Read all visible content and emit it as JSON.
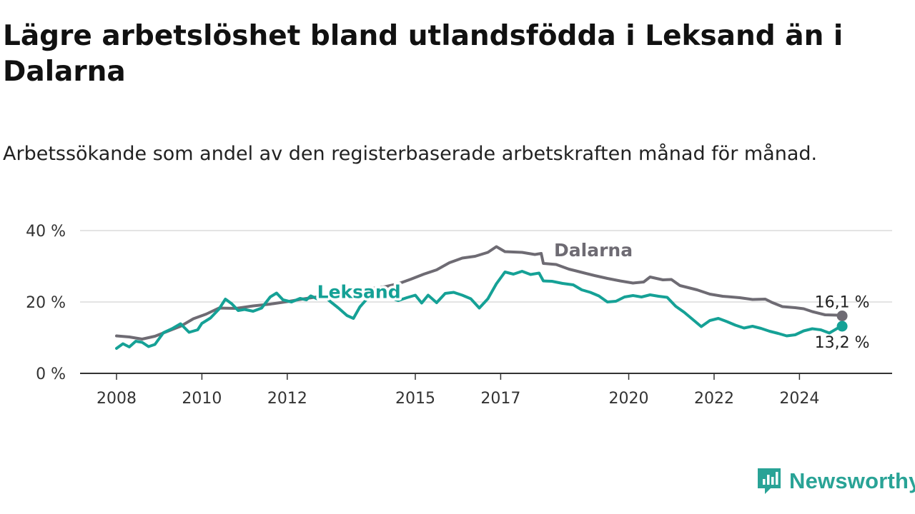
{
  "title": "Lägre arbetslöshet bland utlandsfödda i Leksand än i Dalarna",
  "subtitle": "Arbetssökande som andel av den registerbaserade arbetskraften månad för månad.",
  "brand": {
    "name": "Newsworthy",
    "color": "#29a396"
  },
  "chart_data": {
    "type": "line",
    "title": "Lägre arbetslöshet bland utlandsfödda i Leksand än i Dalarna",
    "subtitle": "Arbetssökande som andel av den registerbaserade arbetskraften månad för månad.",
    "xlabel": "",
    "ylabel": "",
    "xlim": [
      2008.0,
      2025.3
    ],
    "ylim": [
      0,
      40
    ],
    "y_ticks": [
      {
        "value": 0,
        "label": "0 %"
      },
      {
        "value": 20,
        "label": "20 %"
      },
      {
        "value": 40,
        "label": "40 %"
      }
    ],
    "x_ticks": [
      {
        "value": 2008.0,
        "label": "2008"
      },
      {
        "value": 2010.0,
        "label": "2010"
      },
      {
        "value": 2012.0,
        "label": "2012"
      },
      {
        "value": 2015.0,
        "label": "2015"
      },
      {
        "value": 2017.0,
        "label": "2017"
      },
      {
        "value": 2020.0,
        "label": "2020"
      },
      {
        "value": 2022.0,
        "label": "2022"
      },
      {
        "value": 2024.0,
        "label": "2024"
      }
    ],
    "grid": true,
    "legend": "direct labels on lines",
    "series": [
      {
        "name": "Dalarna",
        "color": "#6e6b73",
        "end_label": "16,1 %",
        "points": [
          [
            2008.0,
            10.5
          ],
          [
            2008.3,
            10.2
          ],
          [
            2008.6,
            9.6
          ],
          [
            2008.9,
            10.4
          ],
          [
            2009.2,
            11.8
          ],
          [
            2009.5,
            13.2
          ],
          [
            2009.8,
            15.3
          ],
          [
            2010.1,
            16.6
          ],
          [
            2010.4,
            18.3
          ],
          [
            2010.8,
            18.2
          ],
          [
            2011.2,
            18.9
          ],
          [
            2011.6,
            19.4
          ],
          [
            2012.0,
            20.1
          ],
          [
            2012.4,
            20.9
          ],
          [
            2012.8,
            21.6
          ],
          [
            2013.2,
            22.4
          ],
          [
            2013.6,
            23.0
          ],
          [
            2014.0,
            23.8
          ],
          [
            2014.3,
            24.3
          ],
          [
            2014.6,
            25.1
          ],
          [
            2014.9,
            26.4
          ],
          [
            2015.2,
            27.8
          ],
          [
            2015.5,
            29.0
          ],
          [
            2015.8,
            31.0
          ],
          [
            2016.1,
            32.3
          ],
          [
            2016.4,
            32.8
          ],
          [
            2016.7,
            33.9
          ],
          [
            2016.9,
            35.5
          ],
          [
            2017.1,
            34.1
          ],
          [
            2017.5,
            33.9
          ],
          [
            2017.8,
            33.3
          ],
          [
            2017.95,
            33.6
          ],
          [
            2018.0,
            30.8
          ],
          [
            2018.3,
            30.5
          ],
          [
            2018.6,
            29.2
          ],
          [
            2018.9,
            28.3
          ],
          [
            2019.2,
            27.4
          ],
          [
            2019.5,
            26.6
          ],
          [
            2019.8,
            25.9
          ],
          [
            2020.1,
            25.3
          ],
          [
            2020.35,
            25.6
          ],
          [
            2020.5,
            27.0
          ],
          [
            2020.8,
            26.2
          ],
          [
            2021.0,
            26.3
          ],
          [
            2021.2,
            24.6
          ],
          [
            2021.6,
            23.4
          ],
          [
            2021.9,
            22.2
          ],
          [
            2022.2,
            21.6
          ],
          [
            2022.6,
            21.2
          ],
          [
            2022.9,
            20.7
          ],
          [
            2023.2,
            20.8
          ],
          [
            2023.35,
            19.9
          ],
          [
            2023.6,
            18.7
          ],
          [
            2023.9,
            18.4
          ],
          [
            2024.1,
            18.1
          ],
          [
            2024.3,
            17.3
          ],
          [
            2024.6,
            16.4
          ],
          [
            2024.9,
            16.3
          ],
          [
            2025.0,
            16.1
          ]
        ]
      },
      {
        "name": "Leksand",
        "color": "#15a196",
        "end_label": "13,2 %",
        "points": [
          [
            2008.0,
            7.0
          ],
          [
            2008.15,
            8.3
          ],
          [
            2008.3,
            7.4
          ],
          [
            2008.45,
            9.0
          ],
          [
            2008.6,
            8.7
          ],
          [
            2008.75,
            7.5
          ],
          [
            2008.9,
            8.1
          ],
          [
            2009.1,
            11.4
          ],
          [
            2009.3,
            12.5
          ],
          [
            2009.5,
            13.9
          ],
          [
            2009.7,
            11.5
          ],
          [
            2009.9,
            12.2
          ],
          [
            2010.0,
            14.0
          ],
          [
            2010.2,
            15.5
          ],
          [
            2010.4,
            18.0
          ],
          [
            2010.55,
            20.8
          ],
          [
            2010.7,
            19.5
          ],
          [
            2010.85,
            17.6
          ],
          [
            2011.0,
            17.9
          ],
          [
            2011.2,
            17.4
          ],
          [
            2011.4,
            18.3
          ],
          [
            2011.6,
            21.4
          ],
          [
            2011.75,
            22.5
          ],
          [
            2011.9,
            20.6
          ],
          [
            2012.1,
            20.0
          ],
          [
            2012.3,
            21.0
          ],
          [
            2012.45,
            20.6
          ],
          [
            2012.55,
            21.7
          ],
          [
            2012.7,
            20.9
          ],
          [
            2012.85,
            21.9
          ],
          [
            2013.0,
            20.2
          ],
          [
            2013.2,
            18.3
          ],
          [
            2013.4,
            16.2
          ],
          [
            2013.55,
            15.4
          ],
          [
            2013.7,
            18.6
          ],
          [
            2013.9,
            21.3
          ],
          [
            2014.1,
            23.8
          ],
          [
            2014.25,
            22.6
          ],
          [
            2014.4,
            21.2
          ],
          [
            2014.6,
            20.4
          ],
          [
            2014.8,
            21.2
          ],
          [
            2015.0,
            21.9
          ],
          [
            2015.15,
            19.7
          ],
          [
            2015.3,
            21.9
          ],
          [
            2015.5,
            19.8
          ],
          [
            2015.7,
            22.4
          ],
          [
            2015.9,
            22.7
          ],
          [
            2016.1,
            21.9
          ],
          [
            2016.3,
            20.9
          ],
          [
            2016.5,
            18.3
          ],
          [
            2016.7,
            20.9
          ],
          [
            2016.9,
            25.1
          ],
          [
            2017.1,
            28.4
          ],
          [
            2017.3,
            27.8
          ],
          [
            2017.5,
            28.6
          ],
          [
            2017.7,
            27.7
          ],
          [
            2017.9,
            28.1
          ],
          [
            2018.0,
            25.9
          ],
          [
            2018.2,
            25.8
          ],
          [
            2018.45,
            25.2
          ],
          [
            2018.7,
            24.8
          ],
          [
            2018.9,
            23.4
          ],
          [
            2019.1,
            22.7
          ],
          [
            2019.3,
            21.7
          ],
          [
            2019.5,
            20.0
          ],
          [
            2019.7,
            20.2
          ],
          [
            2019.9,
            21.4
          ],
          [
            2020.1,
            21.8
          ],
          [
            2020.3,
            21.4
          ],
          [
            2020.5,
            22.0
          ],
          [
            2020.7,
            21.6
          ],
          [
            2020.9,
            21.3
          ],
          [
            2021.1,
            18.8
          ],
          [
            2021.3,
            17.1
          ],
          [
            2021.5,
            15.1
          ],
          [
            2021.7,
            13.1
          ],
          [
            2021.9,
            14.8
          ],
          [
            2022.1,
            15.4
          ],
          [
            2022.3,
            14.5
          ],
          [
            2022.5,
            13.5
          ],
          [
            2022.7,
            12.7
          ],
          [
            2022.9,
            13.2
          ],
          [
            2023.1,
            12.6
          ],
          [
            2023.3,
            11.8
          ],
          [
            2023.5,
            11.2
          ],
          [
            2023.7,
            10.5
          ],
          [
            2023.9,
            10.8
          ],
          [
            2024.1,
            11.9
          ],
          [
            2024.3,
            12.5
          ],
          [
            2024.5,
            12.2
          ],
          [
            2024.7,
            11.3
          ],
          [
            2024.9,
            12.7
          ],
          [
            2025.0,
            13.2
          ]
        ]
      }
    ]
  }
}
